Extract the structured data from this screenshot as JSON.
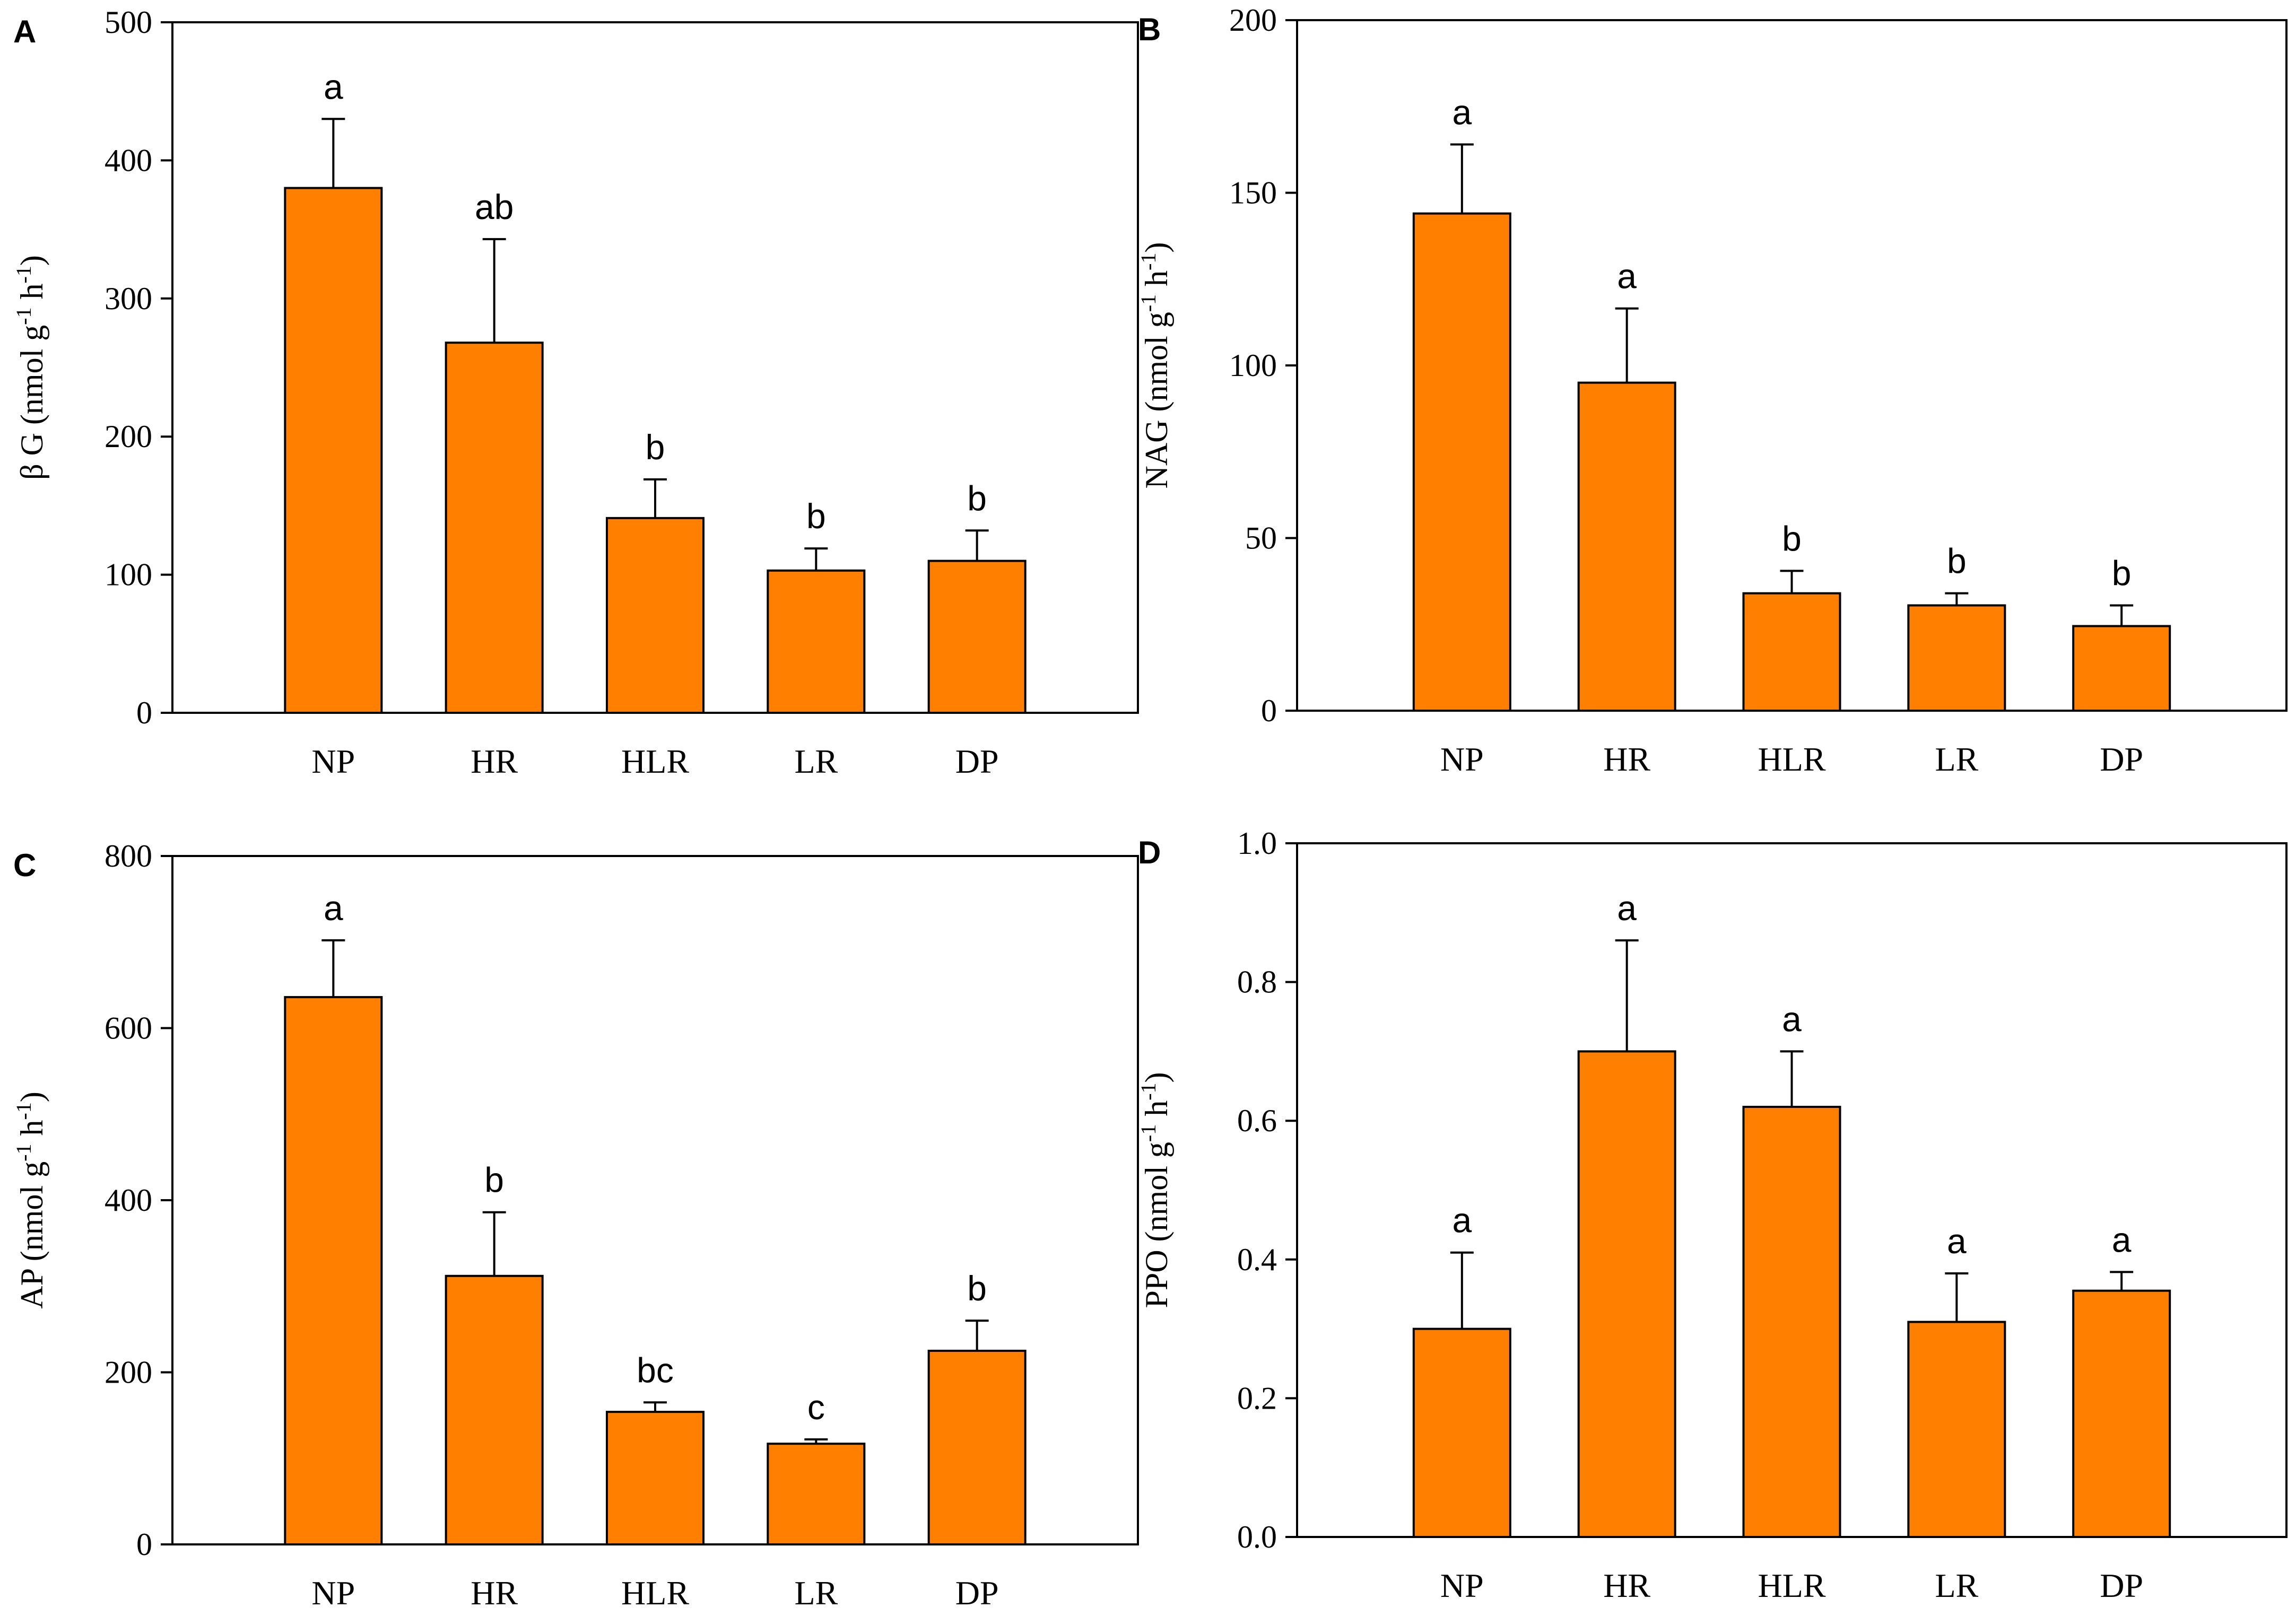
{
  "chart_data": [
    {
      "panel": "A",
      "type": "bar",
      "ylabel": "β G (nmol g-1 h-1)",
      "ylabel_main": "β G (nmol g",
      "ylabel_sup1": "-1",
      "ylabel_mid": " h",
      "ylabel_sup2": "-1",
      "ylabel_end": ")",
      "xlabel": "",
      "ylim": [
        0,
        500
      ],
      "yticks": [
        0,
        100,
        200,
        300,
        400,
        500
      ],
      "ytick_labels": [
        "0",
        "100",
        "200",
        "300",
        "400",
        "500"
      ],
      "categories": [
        "NP",
        "HR",
        "HLR",
        "LR",
        "DP"
      ],
      "values": [
        380,
        268,
        141,
        103,
        110
      ],
      "errors": [
        50,
        75,
        28,
        16,
        22
      ],
      "significance": [
        "a",
        "ab",
        "b",
        "b",
        "b"
      ],
      "bar_color": "#ff8000"
    },
    {
      "panel": "B",
      "type": "bar",
      "ylabel": "NAG (nmol g-1 h-1)",
      "ylabel_main": "NAG (nmol g",
      "ylabel_sup1": "-1",
      "ylabel_mid": " h",
      "ylabel_sup2": "-1",
      "ylabel_end": ")",
      "xlabel": "",
      "ylim": [
        0,
        200
      ],
      "yticks": [
        0,
        50,
        100,
        150,
        200
      ],
      "ytick_labels": [
        "0",
        "50",
        "100",
        "150",
        "200"
      ],
      "categories": [
        "NP",
        "HR",
        "HLR",
        "LR",
        "DP"
      ],
      "values": [
        144,
        95,
        34,
        30.5,
        24.5
      ],
      "errors": [
        20,
        21.5,
        6.5,
        3.5,
        6
      ],
      "significance": [
        "a",
        "a",
        "b",
        "b",
        "b"
      ],
      "bar_color": "#ff8000"
    },
    {
      "panel": "C",
      "type": "bar",
      "ylabel": "AP (nmol g-1 h-1)",
      "ylabel_main": "AP (nmol g",
      "ylabel_sup1": "-1",
      "ylabel_mid": " h",
      "ylabel_sup2": "-1",
      "ylabel_end": ")",
      "xlabel": "",
      "ylim": [
        0,
        800
      ],
      "yticks": [
        0,
        200,
        400,
        600,
        800
      ],
      "ytick_labels": [
        "0",
        "200",
        "400",
        "600",
        "800"
      ],
      "categories": [
        "NP",
        "HR",
        "HLR",
        "LR",
        "DP"
      ],
      "values": [
        636,
        312,
        154,
        117,
        225
      ],
      "errors": [
        66,
        74,
        11,
        5,
        35
      ],
      "significance": [
        "a",
        "b",
        "bc",
        "c",
        "b"
      ],
      "bar_color": "#ff8000"
    },
    {
      "panel": "D",
      "type": "bar",
      "ylabel": "PPO (nmol g-1 h-1)",
      "ylabel_main": "PPO (nmol g",
      "ylabel_sup1": "-1",
      "ylabel_mid": " h",
      "ylabel_sup2": "-1",
      "ylabel_end": ")",
      "xlabel": "",
      "ylim": [
        0,
        1.0
      ],
      "yticks": [
        0,
        0.2,
        0.4,
        0.6,
        0.8,
        1.0
      ],
      "ytick_labels": [
        "0.0",
        "0.2",
        "0.4",
        "0.6",
        "0.8",
        "1.0"
      ],
      "categories": [
        "NP",
        "HR",
        "HLR",
        "LR",
        "DP"
      ],
      "values": [
        0.3,
        0.7,
        0.62,
        0.31,
        0.355
      ],
      "errors": [
        0.11,
        0.16,
        0.08,
        0.07,
        0.027
      ],
      "significance": [
        "a",
        "a",
        "a",
        "a",
        "a"
      ],
      "bar_color": "#ff8000"
    }
  ]
}
